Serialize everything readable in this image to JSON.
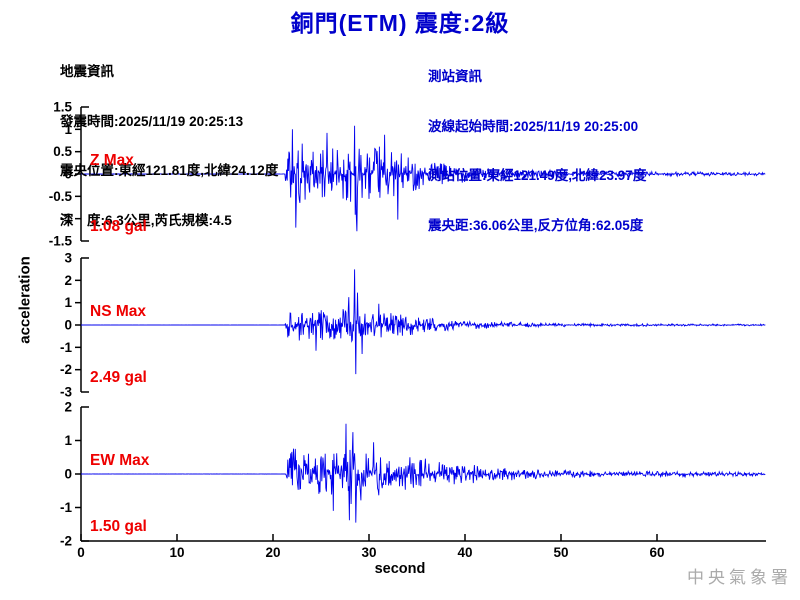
{
  "title": {
    "text": "銅門(ETM) 震度:2級"
  },
  "eq_info": {
    "lines": [
      "地震資訊",
      "發震時間:2025/11/19 20:25:13",
      "震央位置:東經121.81度,北緯24.12度",
      "深　度:6.3公里,芮氏規模:4.5"
    ]
  },
  "station_info": {
    "lines": [
      "測站資訊",
      "波線起始時間:2025/11/19 20:25:00",
      "測站位置:東經121.49度,北緯23.97度",
      "震央距:36.06公里,反方位角:62.05度"
    ]
  },
  "watermark": "中央氣象署",
  "colors": {
    "title_blue": "#0000CC",
    "info_blue": "#0000CC",
    "trace_blue": "#0000EE",
    "label_red": "#EE0000",
    "axis_black": "#000000",
    "watermark_gray": "#ABABAB"
  },
  "chart_data": {
    "type": "line",
    "title": "銅門(ETM) 震度:2級",
    "xlabel": "second",
    "ylabel": "acceleration",
    "x_ticks": [
      "0",
      "10",
      "20",
      "30",
      "40",
      "50",
      "60"
    ],
    "x_range_s": [
      0,
      71.3
    ],
    "signal_onset_s": 21.3,
    "grid": false,
    "series": [
      {
        "name": "Z",
        "label": "Z Max",
        "max_label": "1.08 gal",
        "max_gal": 1.08,
        "ymax": 1.5,
        "ylim": [
          -1.5,
          1.5
        ],
        "yticks": [
          "1.5",
          "1",
          "0.5",
          "0",
          "-0.5",
          "-1",
          "-1.5"
        ],
        "seed": 42,
        "envelope": [
          [
            0,
            0.004
          ],
          [
            21.25,
            0.004
          ],
          [
            21.45,
            0.7
          ],
          [
            22,
            0.95
          ],
          [
            22.6,
            0.8
          ],
          [
            23.2,
            0.68
          ],
          [
            24,
            0.62
          ],
          [
            25,
            0.68
          ],
          [
            26,
            0.58
          ],
          [
            27,
            0.6
          ],
          [
            28,
            0.78
          ],
          [
            28.6,
            1.0
          ],
          [
            29.2,
            0.68
          ],
          [
            30,
            0.58
          ],
          [
            31,
            0.64
          ],
          [
            32,
            0.58
          ],
          [
            33,
            0.5
          ],
          [
            34,
            0.42
          ],
          [
            35,
            0.35
          ],
          [
            36,
            0.3
          ],
          [
            38,
            0.24
          ],
          [
            40,
            0.19
          ],
          [
            42,
            0.15
          ],
          [
            44,
            0.12
          ],
          [
            46,
            0.1
          ],
          [
            48,
            0.09
          ],
          [
            50,
            0.08
          ],
          [
            55,
            0.06
          ],
          [
            60,
            0.05
          ],
          [
            65,
            0.045
          ],
          [
            71.3,
            0.04
          ]
        ],
        "peaks": [
          [
            22.0,
            1.0
          ],
          [
            22.35,
            -1.2
          ],
          [
            25.6,
            0.92
          ],
          [
            28.5,
            1.08
          ],
          [
            28.75,
            -1.28
          ],
          [
            31.6,
            0.88
          ],
          [
            33.0,
            -1.02
          ]
        ]
      },
      {
        "name": "NS",
        "label": "NS Max",
        "max_label": "2.49 gal",
        "max_gal": 2.49,
        "ymax": 3,
        "ylim": [
          -3,
          3
        ],
        "yticks": [
          "3",
          "2",
          "1",
          "0",
          "-1",
          "-2",
          "-3"
        ],
        "seed": 1337,
        "envelope": [
          [
            0,
            0.004
          ],
          [
            21.25,
            0.004
          ],
          [
            21.45,
            0.6
          ],
          [
            22,
            0.8
          ],
          [
            23,
            0.7
          ],
          [
            24,
            0.66
          ],
          [
            25,
            0.72
          ],
          [
            26,
            0.66
          ],
          [
            27,
            0.76
          ],
          [
            28,
            0.9
          ],
          [
            28.5,
            0.82
          ],
          [
            29,
            0.76
          ],
          [
            30,
            0.7
          ],
          [
            31,
            0.76
          ],
          [
            32,
            0.66
          ],
          [
            33,
            0.56
          ],
          [
            34,
            0.48
          ],
          [
            35,
            0.4
          ],
          [
            36,
            0.35
          ],
          [
            38,
            0.27
          ],
          [
            40,
            0.21
          ],
          [
            42,
            0.17
          ],
          [
            44,
            0.14
          ],
          [
            46,
            0.11
          ],
          [
            48,
            0.09
          ],
          [
            50,
            0.08
          ],
          [
            55,
            0.06
          ],
          [
            60,
            0.05
          ],
          [
            65,
            0.045
          ],
          [
            71.3,
            0.04
          ]
        ],
        "peaks": [
          [
            24.5,
            -1.15
          ],
          [
            27.9,
            1.25
          ],
          [
            28.5,
            2.49
          ],
          [
            28.62,
            -2.2
          ],
          [
            28.78,
            1.45
          ],
          [
            29.3,
            -1.3
          ],
          [
            31.0,
            0.95
          ]
        ]
      },
      {
        "name": "EW",
        "label": "EW Max",
        "max_label": "1.50 gal",
        "max_gal": 1.5,
        "ymax": 2,
        "ylim": [
          -2,
          2
        ],
        "yticks": [
          "2",
          "1",
          "0",
          "-1",
          "-2"
        ],
        "seed": 2024,
        "envelope": [
          [
            0,
            0.004
          ],
          [
            21.25,
            0.004
          ],
          [
            21.45,
            0.6
          ],
          [
            22,
            0.8
          ],
          [
            23,
            0.66
          ],
          [
            24,
            0.6
          ],
          [
            25,
            0.66
          ],
          [
            26,
            0.76
          ],
          [
            27,
            0.9
          ],
          [
            28,
            1.0
          ],
          [
            28.6,
            0.94
          ],
          [
            29.2,
            0.8
          ],
          [
            30,
            0.76
          ],
          [
            31,
            0.7
          ],
          [
            32,
            0.66
          ],
          [
            33,
            0.6
          ],
          [
            34,
            0.55
          ],
          [
            35,
            0.5
          ],
          [
            36,
            0.45
          ],
          [
            38,
            0.38
          ],
          [
            40,
            0.3
          ],
          [
            42,
            0.25
          ],
          [
            44,
            0.2
          ],
          [
            46,
            0.17
          ],
          [
            48,
            0.14
          ],
          [
            50,
            0.12
          ],
          [
            55,
            0.09
          ],
          [
            60,
            0.08
          ],
          [
            65,
            0.07
          ],
          [
            71.3,
            0.05
          ]
        ],
        "peaks": [
          [
            26.3,
            -1.1
          ],
          [
            27.6,
            1.5
          ],
          [
            27.95,
            -1.38
          ],
          [
            28.3,
            1.25
          ],
          [
            28.6,
            -1.45
          ],
          [
            30.5,
            0.95
          ]
        ]
      }
    ]
  }
}
